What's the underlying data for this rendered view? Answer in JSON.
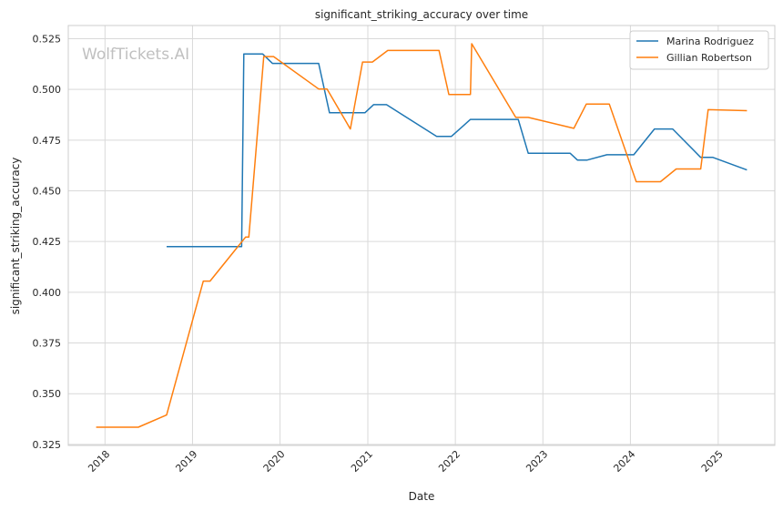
{
  "chart_data": {
    "type": "line",
    "title": "significant_striking_accuracy over time",
    "xlabel": "Date",
    "ylabel": "significant_striking_accuracy",
    "watermark": "WolfTickets.AI",
    "grid": true,
    "legend_position": "top-right",
    "xlim": [
      "2017-08-01",
      "2025-08-25"
    ],
    "ylim": [
      0.3245,
      0.5315
    ],
    "x_ticks": [
      "2018",
      "2019",
      "2020",
      "2021",
      "2022",
      "2023",
      "2024",
      "2025"
    ],
    "y_ticks": [
      "0.325",
      "0.350",
      "0.375",
      "0.400",
      "0.425",
      "0.450",
      "0.475",
      "0.500",
      "0.525"
    ],
    "series": [
      {
        "name": "Marina Rodriguez",
        "color": "#1f77b4",
        "points": [
          [
            "2018-09-15",
            0.4225
          ],
          [
            "2019-07-25",
            0.4225
          ],
          [
            "2019-08-03",
            0.5175
          ],
          [
            "2019-10-20",
            0.5175
          ],
          [
            "2019-11-30",
            0.5128
          ],
          [
            "2020-06-10",
            0.5128
          ],
          [
            "2020-07-25",
            0.4885
          ],
          [
            "2020-12-20",
            0.4885
          ],
          [
            "2021-01-25",
            0.4925
          ],
          [
            "2021-03-20",
            0.4925
          ],
          [
            "2021-10-15",
            0.4768
          ],
          [
            "2021-12-15",
            0.4768
          ],
          [
            "2022-03-05",
            0.4852
          ],
          [
            "2022-09-20",
            0.4852
          ],
          [
            "2022-11-01",
            0.4685
          ],
          [
            "2023-04-25",
            0.4685
          ],
          [
            "2023-05-25",
            0.4652
          ],
          [
            "2023-07-05",
            0.4652
          ],
          [
            "2023-09-25",
            0.4678
          ],
          [
            "2024-01-15",
            0.4678
          ],
          [
            "2024-04-10",
            0.4805
          ],
          [
            "2024-06-25",
            0.4805
          ],
          [
            "2024-10-20",
            0.4665
          ],
          [
            "2024-12-10",
            0.4665
          ],
          [
            "2025-05-01",
            0.4603
          ]
        ]
      },
      {
        "name": "Gillian Robertson",
        "color": "#ff7f0e",
        "points": [
          [
            "2017-11-25",
            0.3335
          ],
          [
            "2018-05-20",
            0.3335
          ],
          [
            "2018-09-15",
            0.3395
          ],
          [
            "2019-02-15",
            0.4055
          ],
          [
            "2019-03-15",
            0.4055
          ],
          [
            "2019-08-10",
            0.4272
          ],
          [
            "2019-08-24",
            0.4272
          ],
          [
            "2019-10-25",
            0.5162
          ],
          [
            "2019-12-05",
            0.5162
          ],
          [
            "2020-06-10",
            0.5002
          ],
          [
            "2020-07-15",
            0.5002
          ],
          [
            "2020-10-20",
            0.4805
          ],
          [
            "2020-12-10",
            0.5135
          ],
          [
            "2021-01-20",
            0.5135
          ],
          [
            "2021-03-25",
            0.5192
          ],
          [
            "2021-10-25",
            0.5192
          ],
          [
            "2021-12-05",
            0.4975
          ],
          [
            "2022-03-05",
            0.4975
          ],
          [
            "2022-03-10",
            0.5225
          ],
          [
            "2022-09-10",
            0.4862
          ],
          [
            "2022-11-01",
            0.4862
          ],
          [
            "2023-05-10",
            0.4808
          ],
          [
            "2023-07-01",
            0.4928
          ],
          [
            "2023-10-05",
            0.4928
          ],
          [
            "2024-01-25",
            0.4545
          ],
          [
            "2024-05-05",
            0.4545
          ],
          [
            "2024-07-10",
            0.4608
          ],
          [
            "2024-10-20",
            0.4608
          ],
          [
            "2024-11-20",
            0.49
          ],
          [
            "2025-05-01",
            0.4895
          ]
        ]
      }
    ]
  }
}
